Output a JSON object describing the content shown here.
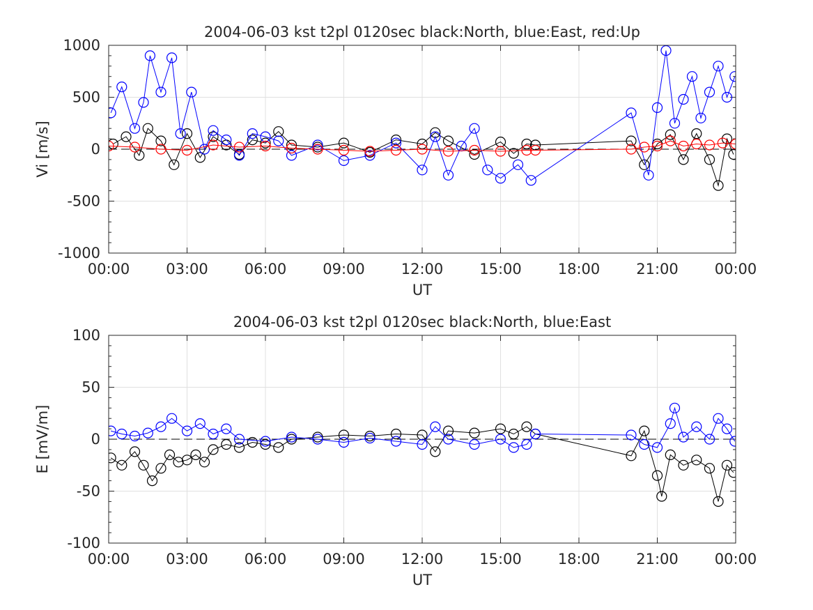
{
  "colors": {
    "north": "#000000",
    "east": "#0000ff",
    "up": "#ff0000",
    "grid": "#e0e0e0",
    "axis": "#262626"
  },
  "chart_data": [
    {
      "type": "scatter",
      "title": "2004-06-03 kst t2pl 0120sec black:North, blue:East, red:Up",
      "xlabel": "UT",
      "ylabel": "Vi [m/s]",
      "xlim": [
        "00:00",
        "24:00"
      ],
      "ylim": [
        -1000,
        1000
      ],
      "xticks": [
        "00:00",
        "03:00",
        "06:00",
        "09:00",
        "12:00",
        "15:00",
        "18:00",
        "21:00",
        "00:00"
      ],
      "yticks": [
        "-1000",
        "-500",
        "0",
        "500",
        "1000"
      ],
      "grid": true,
      "marker": "circle",
      "zero_line": "dashed",
      "series": [
        {
          "name": "North",
          "color": "#000000",
          "x": [
            "00:10",
            "00:40",
            "01:10",
            "01:30",
            "02:00",
            "02:30",
            "03:00",
            "03:30",
            "04:00",
            "04:30",
            "05:00",
            "05:30",
            "06:00",
            "06:30",
            "07:00",
            "08:00",
            "09:00",
            "10:00",
            "11:00",
            "12:00",
            "12:30",
            "13:00",
            "14:00",
            "15:00",
            "15:30",
            "16:00",
            "16:20",
            "20:00",
            "20:30",
            "21:00",
            "21:30",
            "22:00",
            "22:30",
            "23:00",
            "23:20",
            "23:40",
            "23:55"
          ],
          "y": [
            50,
            120,
            -60,
            200,
            80,
            -150,
            150,
            -80,
            120,
            40,
            -50,
            90,
            60,
            170,
            40,
            20,
            60,
            -30,
            90,
            50,
            160,
            80,
            -50,
            70,
            -40,
            50,
            40,
            80,
            -150,
            50,
            140,
            -100,
            150,
            -100,
            -350,
            100,
            -50
          ]
        },
        {
          "name": "East",
          "color": "#0000ff",
          "x": [
            "00:05",
            "00:30",
            "01:00",
            "01:20",
            "01:35",
            "02:00",
            "02:25",
            "02:45",
            "03:10",
            "03:40",
            "04:00",
            "04:30",
            "05:00",
            "05:30",
            "06:00",
            "06:30",
            "07:00",
            "08:00",
            "09:00",
            "10:00",
            "11:00",
            "12:00",
            "12:30",
            "13:00",
            "13:30",
            "14:00",
            "14:30",
            "15:00",
            "15:40",
            "16:10",
            "20:00",
            "20:40",
            "21:00",
            "21:20",
            "21:40",
            "22:00",
            "22:20",
            "22:40",
            "23:00",
            "23:20",
            "23:40",
            "23:58"
          ],
          "y": [
            350,
            600,
            200,
            450,
            900,
            550,
            880,
            150,
            550,
            0,
            180,
            90,
            -60,
            150,
            120,
            80,
            -60,
            40,
            -110,
            -60,
            60,
            -200,
            120,
            -250,
            30,
            200,
            -200,
            -280,
            -150,
            -300,
            350,
            -250,
            400,
            950,
            250,
            480,
            700,
            300,
            550,
            800,
            500,
            700
          ]
        },
        {
          "name": "Up",
          "color": "#ff0000",
          "x": [
            "00:00",
            "01:00",
            "02:00",
            "03:00",
            "04:00",
            "05:00",
            "06:00",
            "07:00",
            "08:00",
            "09:00",
            "10:00",
            "11:00",
            "12:00",
            "13:00",
            "14:00",
            "15:00",
            "16:00",
            "16:20",
            "20:00",
            "20:30",
            "21:00",
            "21:30",
            "22:00",
            "22:30",
            "23:00",
            "23:30",
            "24:00"
          ],
          "y": [
            30,
            20,
            0,
            -10,
            40,
            20,
            30,
            10,
            0,
            -10,
            -20,
            -10,
            0,
            -20,
            -10,
            -20,
            -10,
            -10,
            0,
            20,
            30,
            80,
            30,
            50,
            40,
            60,
            50
          ]
        }
      ]
    },
    {
      "type": "scatter",
      "title": "2004-06-03 kst t2pl 0120sec black:North, blue:East",
      "xlabel": "UT",
      "ylabel": "E [mV/m]",
      "xlim": [
        "00:00",
        "24:00"
      ],
      "ylim": [
        -100,
        100
      ],
      "xticks": [
        "00:00",
        "03:00",
        "06:00",
        "09:00",
        "12:00",
        "15:00",
        "18:00",
        "21:00",
        "00:00"
      ],
      "yticks": [
        "-100",
        "-50",
        "0",
        "50",
        "100"
      ],
      "grid": true,
      "marker": "circle",
      "zero_line": "dashed",
      "series": [
        {
          "name": "North",
          "color": "#000000",
          "x": [
            "00:05",
            "00:30",
            "01:00",
            "01:20",
            "01:40",
            "02:00",
            "02:20",
            "02:40",
            "03:00",
            "03:20",
            "03:40",
            "04:00",
            "04:30",
            "05:00",
            "05:30",
            "06:00",
            "06:30",
            "07:00",
            "08:00",
            "09:00",
            "10:00",
            "11:00",
            "12:00",
            "12:30",
            "13:00",
            "14:00",
            "15:00",
            "15:30",
            "16:00",
            "16:20",
            "20:00",
            "20:30",
            "21:00",
            "21:10",
            "21:30",
            "22:00",
            "22:30",
            "23:00",
            "23:20",
            "23:40",
            "23:55"
          ],
          "y": [
            -18,
            -25,
            -12,
            -25,
            -40,
            -28,
            -15,
            -22,
            -20,
            -15,
            -22,
            -10,
            -5,
            -8,
            -3,
            -5,
            -8,
            0,
            2,
            4,
            3,
            5,
            4,
            -12,
            8,
            6,
            10,
            5,
            12,
            5,
            -16,
            8,
            -35,
            -55,
            -15,
            -25,
            -20,
            -28,
            -60,
            -25,
            -32
          ]
        },
        {
          "name": "East",
          "color": "#0000ff",
          "x": [
            "00:05",
            "00:30",
            "01:00",
            "01:30",
            "02:00",
            "02:25",
            "03:00",
            "03:30",
            "04:00",
            "04:30",
            "05:00",
            "06:00",
            "07:00",
            "08:00",
            "09:00",
            "10:00",
            "11:00",
            "12:00",
            "12:30",
            "13:00",
            "14:00",
            "15:00",
            "15:30",
            "16:00",
            "16:20",
            "20:00",
            "20:30",
            "21:00",
            "21:30",
            "21:40",
            "22:00",
            "22:30",
            "23:00",
            "23:20",
            "23:40",
            "23:58"
          ],
          "y": [
            8,
            5,
            3,
            6,
            12,
            20,
            8,
            15,
            5,
            10,
            0,
            -2,
            2,
            0,
            -3,
            1,
            -2,
            -5,
            12,
            0,
            -5,
            0,
            -8,
            -5,
            5,
            4,
            -5,
            -8,
            15,
            30,
            2,
            12,
            0,
            20,
            10,
            -2
          ]
        }
      ]
    }
  ]
}
